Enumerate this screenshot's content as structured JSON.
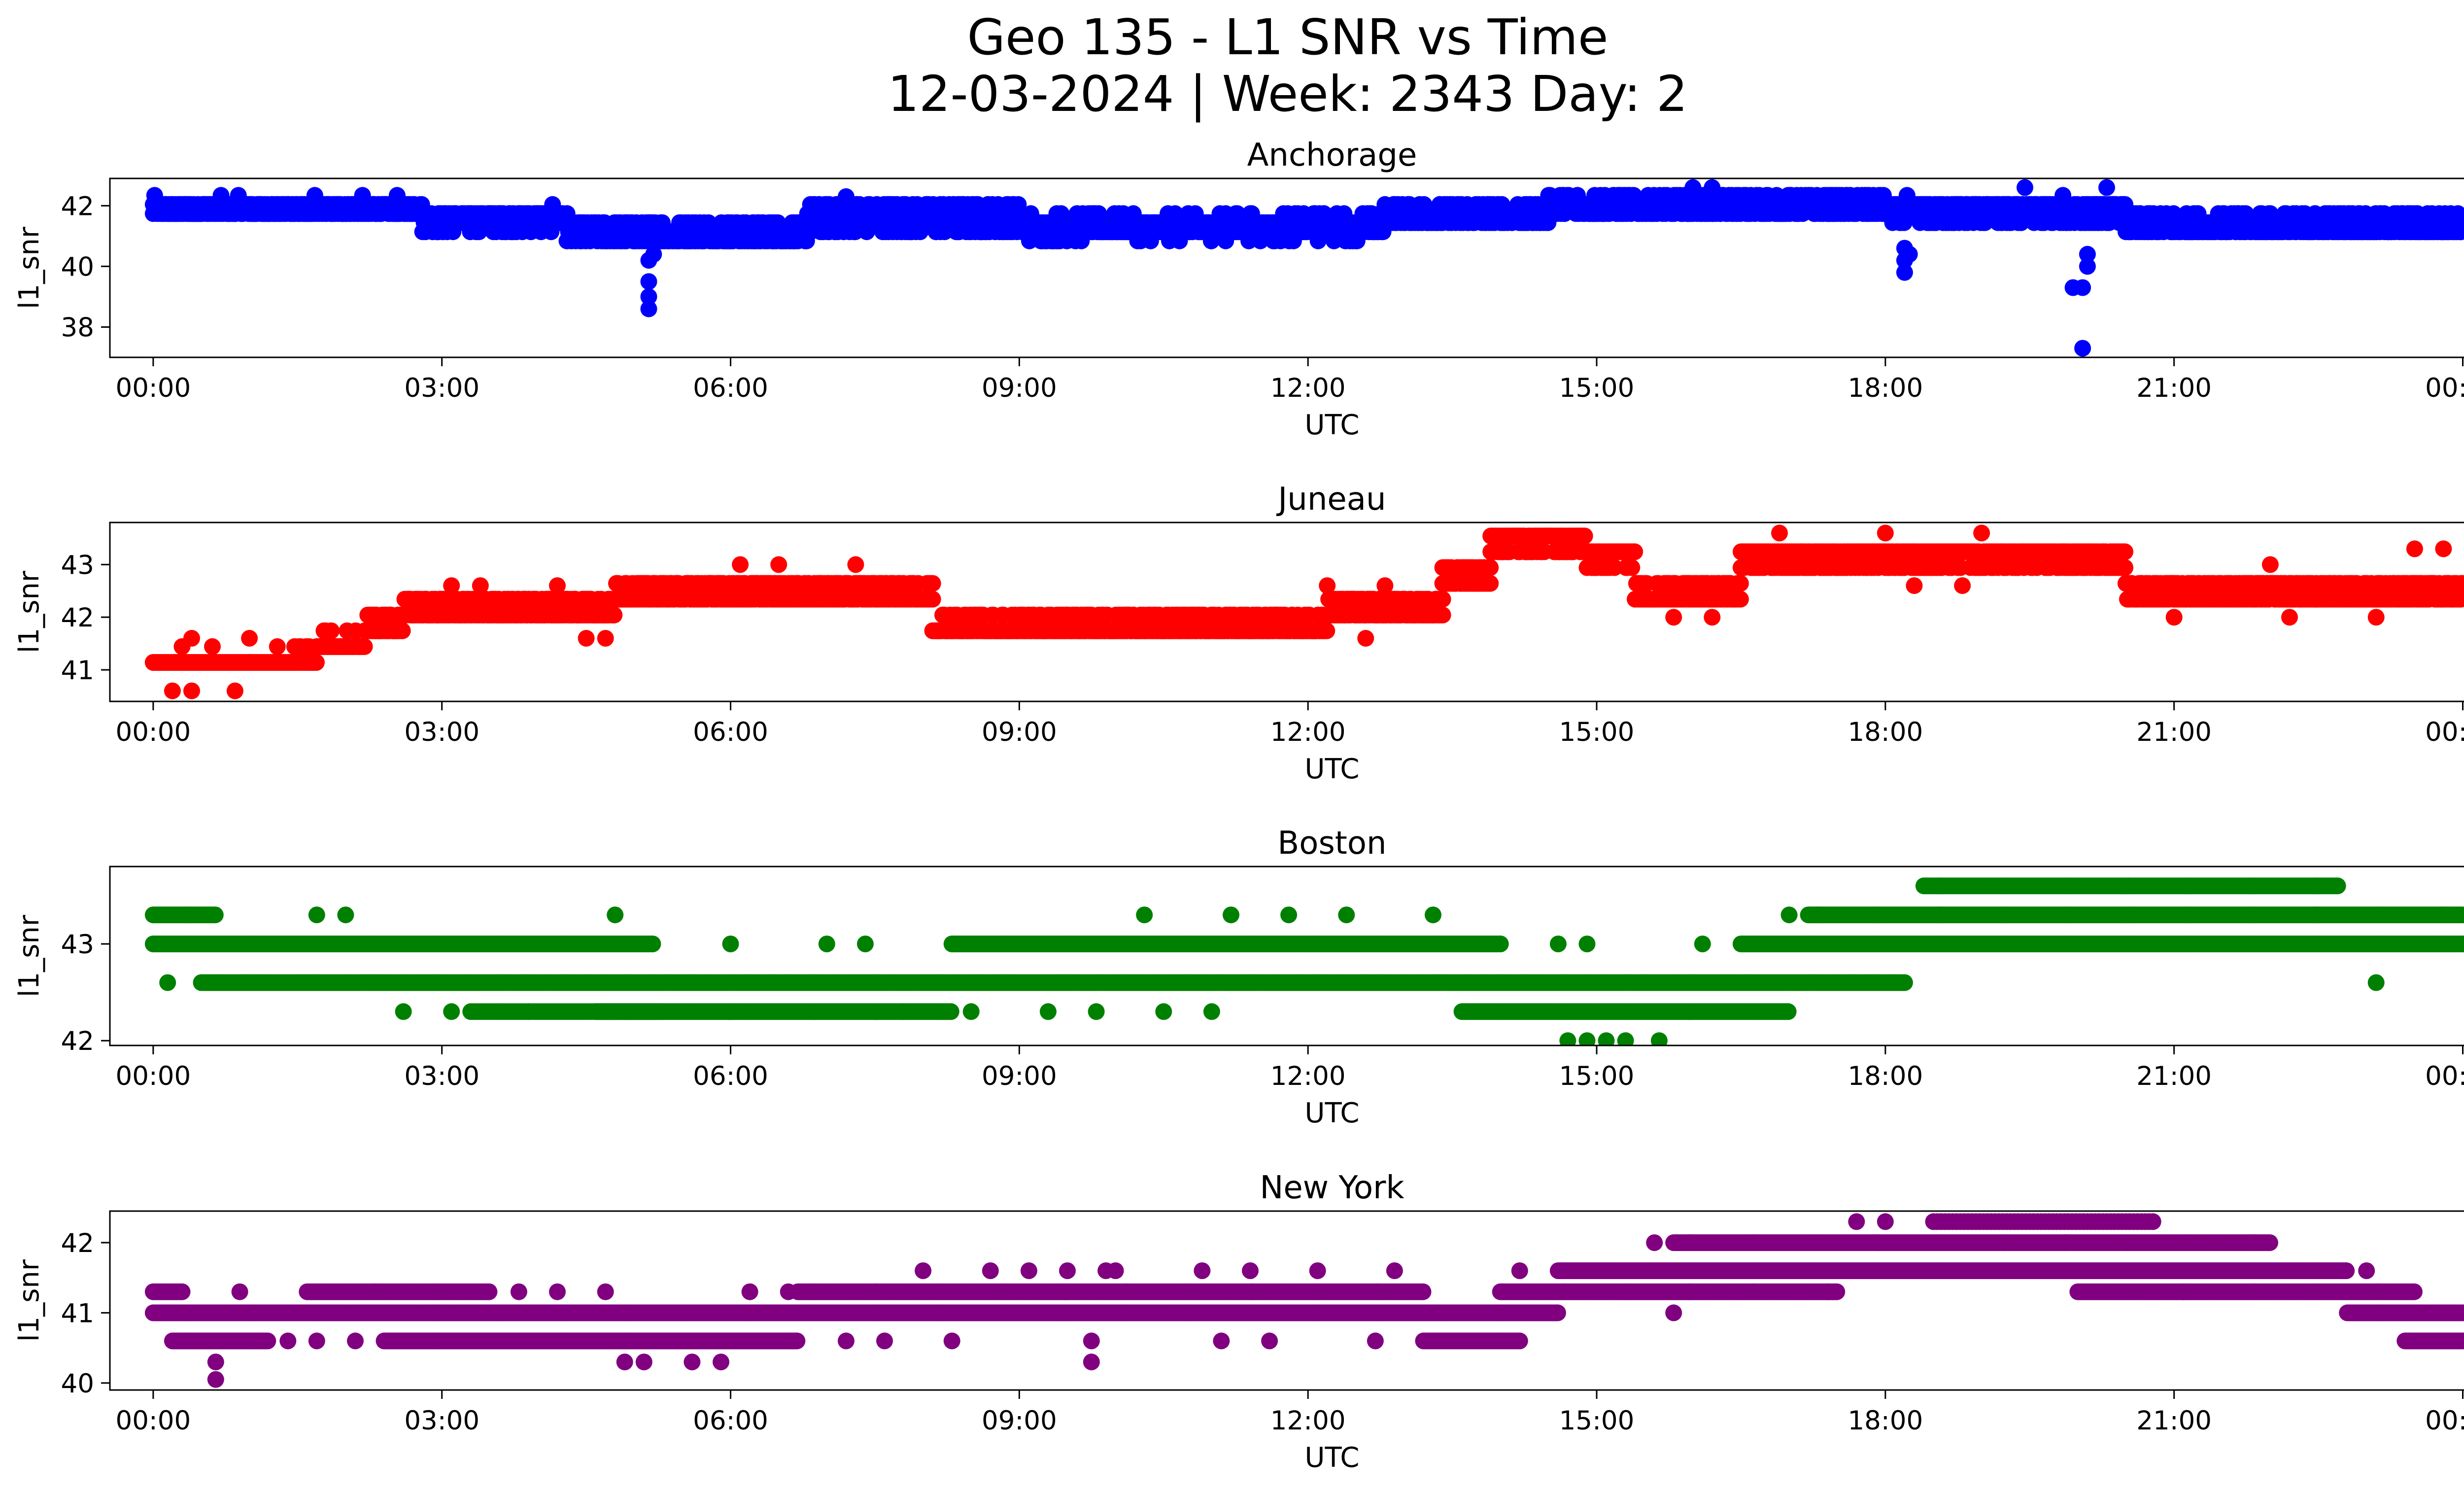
{
  "figure": {
    "title_line1": "Geo 135 - L1 SNR vs Time",
    "title_line2": "12-03-2024 | Week: 2343 Day: 2"
  },
  "chart_data": [
    {
      "type": "scatter",
      "title": "Anchorage",
      "xlabel": "UTC",
      "ylabel": "l1_snr",
      "color": "#0000ff",
      "xlim": [
        -0.45,
        24.95
      ],
      "ylim": [
        37.0,
        42.9
      ],
      "x_ticks": [
        "00:00",
        "03:00",
        "06:00",
        "09:00",
        "12:00",
        "15:00",
        "18:00",
        "21:00",
        "00:00"
      ],
      "y_ticks": [
        38,
        40,
        42
      ],
      "bands": [
        {
          "from": 0.0,
          "to": 2.8,
          "level": 41.9,
          "spread": 0.3,
          "step": 0.015
        },
        {
          "from": 2.8,
          "to": 4.3,
          "level": 41.55,
          "spread": 0.35,
          "step": 0.015
        },
        {
          "from": 4.3,
          "to": 6.8,
          "level": 41.1,
          "spread": 0.35,
          "step": 0.015
        },
        {
          "from": 6.8,
          "to": 9.0,
          "level": 41.6,
          "spread": 0.5,
          "step": 0.015
        },
        {
          "from": 9.0,
          "to": 12.8,
          "level": 41.3,
          "spread": 0.35,
          "step": 0.015
        },
        {
          "from": 12.8,
          "to": 14.5,
          "level": 41.7,
          "spread": 0.3,
          "step": 0.015
        },
        {
          "from": 14.5,
          "to": 18.0,
          "level": 42.0,
          "spread": 0.3,
          "step": 0.015
        },
        {
          "from": 18.0,
          "to": 20.5,
          "level": 41.8,
          "spread": 0.4,
          "step": 0.015
        },
        {
          "from": 20.5,
          "to": 24.0,
          "level": 41.35,
          "spread": 0.35,
          "step": 0.015
        }
      ],
      "outliers": [
        [
          5.15,
          40.2
        ],
        [
          5.15,
          39.5
        ],
        [
          5.15,
          39.0
        ],
        [
          5.15,
          38.6
        ],
        [
          5.2,
          40.4
        ],
        [
          18.2,
          40.6
        ],
        [
          18.2,
          40.2
        ],
        [
          18.2,
          39.8
        ],
        [
          18.25,
          40.4
        ],
        [
          19.95,
          39.3
        ],
        [
          20.05,
          39.3
        ],
        [
          20.05,
          37.3
        ],
        [
          20.1,
          40.4
        ],
        [
          20.1,
          40.0
        ],
        [
          16.0,
          42.6
        ],
        [
          16.2,
          42.6
        ],
        [
          19.45,
          42.6
        ],
        [
          20.3,
          42.6
        ],
        [
          7.2,
          42.3
        ]
      ]
    },
    {
      "type": "scatter",
      "title": "Juneau",
      "xlabel": "UTC",
      "ylabel": "l1_snr",
      "color": "#ff0000",
      "xlim": [
        -0.45,
        24.95
      ],
      "ylim": [
        40.4,
        43.8
      ],
      "x_ticks": [
        "00:00",
        "03:00",
        "06:00",
        "09:00",
        "12:00",
        "15:00",
        "18:00",
        "21:00",
        "00:00"
      ],
      "y_ticks": [
        41,
        42,
        43
      ],
      "bands": [
        {
          "from": 0.0,
          "to": 1.7,
          "level": 41.15,
          "spread": 0.15,
          "step": 0.015
        },
        {
          "from": 1.7,
          "to": 2.2,
          "level": 41.45,
          "spread": 0.15,
          "step": 0.015
        },
        {
          "from": 2.2,
          "to": 2.6,
          "level": 41.8,
          "spread": 0.2,
          "step": 0.015
        },
        {
          "from": 2.6,
          "to": 4.8,
          "level": 42.15,
          "spread": 0.15,
          "step": 0.015
        },
        {
          "from": 4.8,
          "to": 8.1,
          "level": 42.45,
          "spread": 0.15,
          "step": 0.015
        },
        {
          "from": 8.1,
          "to": 12.2,
          "level": 41.8,
          "spread": 0.2,
          "step": 0.015
        },
        {
          "from": 12.2,
          "to": 13.4,
          "level": 42.15,
          "spread": 0.15,
          "step": 0.015
        },
        {
          "from": 13.4,
          "to": 13.9,
          "level": 42.8,
          "spread": 0.2,
          "step": 0.015
        },
        {
          "from": 13.9,
          "to": 14.9,
          "level": 43.45,
          "spread": 0.15,
          "step": 0.015
        },
        {
          "from": 14.9,
          "to": 15.4,
          "level": 43.15,
          "spread": 0.15,
          "step": 0.015
        },
        {
          "from": 15.4,
          "to": 16.5,
          "level": 42.45,
          "spread": 0.15,
          "step": 0.015
        },
        {
          "from": 16.5,
          "to": 20.5,
          "level": 43.15,
          "spread": 0.15,
          "step": 0.015
        },
        {
          "from": 20.5,
          "to": 24.0,
          "level": 42.45,
          "spread": 0.15,
          "step": 0.015
        }
      ],
      "outliers": [
        [
          0.2,
          40.6
        ],
        [
          0.4,
          40.6
        ],
        [
          0.85,
          40.6
        ],
        [
          0.4,
          41.6
        ],
        [
          1.0,
          41.6
        ],
        [
          4.5,
          41.6
        ],
        [
          4.7,
          41.6
        ],
        [
          3.1,
          42.6
        ],
        [
          3.4,
          42.6
        ],
        [
          4.2,
          42.6
        ],
        [
          6.1,
          43.0
        ],
        [
          6.5,
          43.0
        ],
        [
          7.3,
          43.0
        ],
        [
          12.2,
          42.6
        ],
        [
          12.8,
          42.6
        ],
        [
          12.6,
          41.6
        ],
        [
          15.8,
          42.0
        ],
        [
          16.2,
          42.0
        ],
        [
          16.9,
          43.6
        ],
        [
          18.0,
          43.6
        ],
        [
          18.3,
          42.6
        ],
        [
          18.8,
          42.6
        ],
        [
          19.0,
          43.6
        ],
        [
          21.0,
          42.0
        ],
        [
          22.2,
          42.0
        ],
        [
          23.1,
          42.0
        ],
        [
          23.5,
          43.3
        ],
        [
          23.8,
          43.3
        ],
        [
          22.0,
          43.0
        ],
        [
          21.8,
          42.6
        ]
      ]
    },
    {
      "type": "scatter",
      "title": "Boston",
      "xlabel": "UTC",
      "ylabel": "l1_snr",
      "color": "#008000",
      "xlim": [
        -0.45,
        24.95
      ],
      "ylim": [
        41.95,
        43.8
      ],
      "x_ticks": [
        "00:00",
        "03:00",
        "06:00",
        "09:00",
        "12:00",
        "15:00",
        "18:00",
        "21:00",
        "00:00"
      ],
      "y_ticks": [
        42,
        43
      ],
      "bands": [
        {
          "from": 0.0,
          "to": 0.65,
          "level": 43.3,
          "spread": 0,
          "step": 0.015
        },
        {
          "from": 0.0,
          "to": 5.2,
          "level": 43.0,
          "spread": 0,
          "step": 0.015
        },
        {
          "from": 0.5,
          "to": 18.2,
          "level": 42.6,
          "spread": 0,
          "step": 0.015
        },
        {
          "from": 3.3,
          "to": 5.3,
          "level": 42.3,
          "spread": 0,
          "step": 0.03
        },
        {
          "from": 4.6,
          "to": 8.3,
          "level": 42.3,
          "spread": 0,
          "step": 0.015
        },
        {
          "from": 8.3,
          "to": 14.0,
          "level": 43.0,
          "spread": 0,
          "step": 0.015
        },
        {
          "from": 13.6,
          "to": 17.0,
          "level": 42.3,
          "spread": 0,
          "step": 0.015
        },
        {
          "from": 16.5,
          "to": 24.0,
          "level": 43.0,
          "spread": 0,
          "step": 0.015
        },
        {
          "from": 17.2,
          "to": 24.0,
          "level": 43.3,
          "spread": 0,
          "step": 0.015
        },
        {
          "from": 18.4,
          "to": 22.7,
          "level": 43.6,
          "spread": 0,
          "step": 0.015
        }
      ],
      "outliers": [
        [
          0.15,
          42.6
        ],
        [
          2.6,
          42.3
        ],
        [
          3.1,
          42.3
        ],
        [
          1.7,
          43.3
        ],
        [
          2.0,
          43.3
        ],
        [
          4.8,
          43.3
        ],
        [
          6.0,
          43.0
        ],
        [
          7.0,
          43.0
        ],
        [
          7.4,
          43.0
        ],
        [
          10.3,
          43.3
        ],
        [
          11.2,
          43.3
        ],
        [
          11.8,
          43.3
        ],
        [
          12.4,
          43.3
        ],
        [
          13.3,
          43.3
        ],
        [
          14.6,
          43.0
        ],
        [
          14.9,
          43.0
        ],
        [
          14.7,
          42.0
        ],
        [
          14.9,
          42.0
        ],
        [
          15.1,
          42.0
        ],
        [
          15.3,
          42.0
        ],
        [
          15.65,
          42.0
        ],
        [
          16.1,
          43.0
        ],
        [
          17.0,
          43.3
        ],
        [
          17.3,
          43.3
        ],
        [
          23.1,
          42.6
        ],
        [
          22.7,
          43.6
        ],
        [
          9.3,
          42.3
        ],
        [
          9.8,
          42.3
        ],
        [
          10.5,
          42.3
        ],
        [
          11.0,
          42.3
        ],
        [
          8.5,
          42.3
        ],
        [
          7.8,
          42.3
        ],
        [
          6.0,
          42.3
        ],
        [
          3.9,
          42.3
        ]
      ]
    },
    {
      "type": "scatter",
      "title": "New York",
      "xlabel": "UTC",
      "ylabel": "l1_snr",
      "color": "#800080",
      "xlim": [
        -0.45,
        24.95
      ],
      "ylim": [
        39.9,
        42.45
      ],
      "x_ticks": [
        "00:00",
        "03:00",
        "06:00",
        "09:00",
        "12:00",
        "15:00",
        "18:00",
        "21:00",
        "00:00"
      ],
      "y_ticks": [
        40,
        41,
        42
      ],
      "bands": [
        {
          "from": 0.0,
          "to": 0.3,
          "level": 41.3,
          "spread": 0,
          "step": 0.015
        },
        {
          "from": 0.0,
          "to": 14.6,
          "level": 41.0,
          "spread": 0,
          "step": 0.015
        },
        {
          "from": 0.2,
          "to": 1.2,
          "level": 40.6,
          "spread": 0,
          "step": 0.015
        },
        {
          "from": 1.6,
          "to": 3.5,
          "level": 41.3,
          "spread": 0,
          "step": 0.015
        },
        {
          "from": 2.4,
          "to": 6.7,
          "level": 40.6,
          "spread": 0,
          "step": 0.015
        },
        {
          "from": 6.7,
          "to": 13.2,
          "level": 41.3,
          "spread": 0,
          "step": 0.015
        },
        {
          "from": 13.2,
          "to": 14.2,
          "level": 40.6,
          "spread": 0,
          "step": 0.02
        },
        {
          "from": 14.0,
          "to": 17.5,
          "level": 41.3,
          "spread": 0,
          "step": 0.015
        },
        {
          "from": 14.6,
          "to": 22.8,
          "level": 41.6,
          "spread": 0,
          "step": 0.015
        },
        {
          "from": 15.8,
          "to": 22.0,
          "level": 42.0,
          "spread": 0,
          "step": 0.015
        },
        {
          "from": 18.5,
          "to": 20.8,
          "level": 42.3,
          "spread": 0,
          "step": 0.04
        },
        {
          "from": 20.0,
          "to": 23.5,
          "level": 41.3,
          "spread": 0,
          "step": 0.015
        },
        {
          "from": 22.8,
          "to": 24.0,
          "level": 41.0,
          "spread": 0,
          "step": 0.015
        },
        {
          "from": 23.4,
          "to": 24.0,
          "level": 40.6,
          "spread": 0,
          "step": 0.015
        }
      ],
      "outliers": [
        [
          0.65,
          40.3
        ],
        [
          0.65,
          40.05
        ],
        [
          0.9,
          41.3
        ],
        [
          1.4,
          40.6
        ],
        [
          1.7,
          40.6
        ],
        [
          2.1,
          40.6
        ],
        [
          3.8,
          41.3
        ],
        [
          4.2,
          41.3
        ],
        [
          4.7,
          41.3
        ],
        [
          4.9,
          40.3
        ],
        [
          5.1,
          40.3
        ],
        [
          5.6,
          40.3
        ],
        [
          5.9,
          40.3
        ],
        [
          6.2,
          41.3
        ],
        [
          6.6,
          41.3
        ],
        [
          7.2,
          40.6
        ],
        [
          7.6,
          40.6
        ],
        [
          8.0,
          41.6
        ],
        [
          8.3,
          40.6
        ],
        [
          8.7,
          41.6
        ],
        [
          9.1,
          41.6
        ],
        [
          9.5,
          41.6
        ],
        [
          9.75,
          40.3
        ],
        [
          9.75,
          40.6
        ],
        [
          9.9,
          41.6
        ],
        [
          10.0,
          41.6
        ],
        [
          10.9,
          41.6
        ],
        [
          11.4,
          41.6
        ],
        [
          12.1,
          41.6
        ],
        [
          12.9,
          41.6
        ],
        [
          11.6,
          40.6
        ],
        [
          12.7,
          40.6
        ],
        [
          14.2,
          41.6
        ],
        [
          15.6,
          42.0
        ],
        [
          15.8,
          41.0
        ],
        [
          17.4,
          41.3
        ],
        [
          17.7,
          42.3
        ],
        [
          18.0,
          42.3
        ],
        [
          21.1,
          41.3
        ],
        [
          22.9,
          41.0
        ],
        [
          23.0,
          41.6
        ],
        [
          11.1,
          40.6
        ]
      ]
    }
  ]
}
